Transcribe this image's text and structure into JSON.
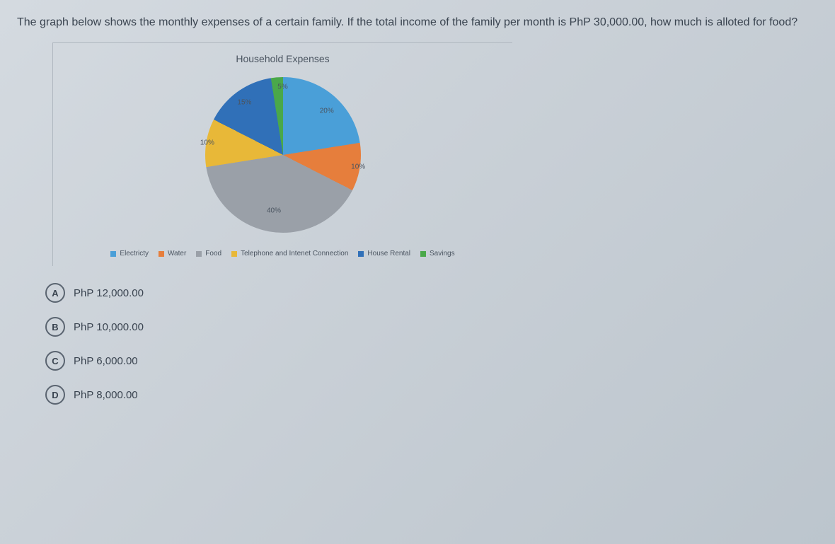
{
  "question": "The graph below shows the monthly expenses of a certain family. If the total income of the family per month is PhP 30,000.00, how much is alloted for food?",
  "chart": {
    "title": "Household Expenses",
    "type": "pie",
    "background_color": "#d4dae0",
    "slices": [
      {
        "label": "Electricty",
        "value": 20,
        "color": "#4a9fd8",
        "pct_label": "20%"
      },
      {
        "label": "Water",
        "value": 10,
        "color": "#e67e3c",
        "pct_label": "10%"
      },
      {
        "label": "Food",
        "value": 40,
        "color": "#9aa0a8",
        "pct_label": "40%"
      },
      {
        "label": "Telephone and Intenet Connection",
        "value": 10,
        "color": "#e8b838",
        "pct_label": "10%"
      },
      {
        "label": "House Rental",
        "value": 15,
        "color": "#3070b8",
        "pct_label": "15%"
      },
      {
        "label": "Savings",
        "value": 5,
        "color": "#4aa84a",
        "pct_label": "5%"
      }
    ],
    "label_fontsize": 10,
    "legend_fontsize": 10,
    "title_fontsize": 14,
    "start_angle_deg": -90
  },
  "options": [
    {
      "letter": "A",
      "text": "PhP 12,000.00"
    },
    {
      "letter": "B",
      "text": "PhP 10,000.00"
    },
    {
      "letter": "C",
      "text": "PhP 6,000.00"
    },
    {
      "letter": "D",
      "text": "PhP 8,000.00"
    }
  ]
}
